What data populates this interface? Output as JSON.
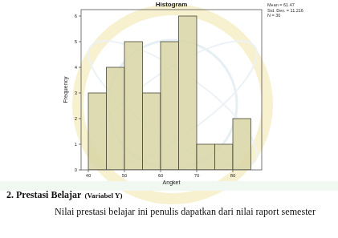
{
  "chart_data": {
    "type": "histogram",
    "title": "Histogram",
    "x_label": "Angket",
    "y_label": "Frequency",
    "bins": [
      40,
      45,
      50,
      55,
      60,
      65,
      70,
      75,
      80,
      85
    ],
    "values": [
      3,
      4,
      5,
      3,
      5,
      6,
      1,
      1,
      2
    ],
    "color": "#d8d5a4",
    "xlim": [
      38,
      88
    ],
    "xticks": [
      40,
      50,
      60,
      70,
      80
    ],
    "ylim": [
      0,
      6.25
    ],
    "yticks": [
      0,
      1,
      2,
      3,
      4,
      5,
      6
    ],
    "grid": false,
    "annotations": [
      "Mean = 61.47",
      "Std. Dev. = 11.216",
      "N = 30"
    ]
  },
  "page": {
    "heading": "2.  Prestasi Belajar",
    "heading_note": "(Variabel Y)",
    "paragraph": "Nilai prestasi belajar ini penulis dapatkan dari nilai raport semester"
  }
}
